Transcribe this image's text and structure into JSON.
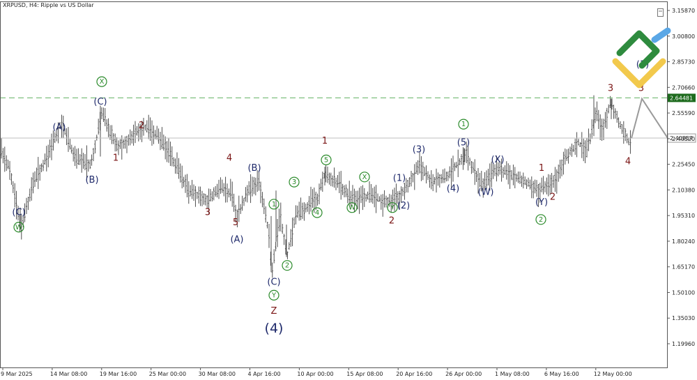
{
  "chart_title": "XRPUSD, H4:  Ripple vs US Dollar",
  "chart_data": {
    "type": "candlestick",
    "title": "XRPUSD, H4:  Ripple vs US Dollar",
    "ylim": [
      1.12,
      3.23
    ],
    "y_ticks": [
      "3.15870",
      "3.00800",
      "2.85730",
      "2.70660",
      "2.55590",
      "2.40520",
      "2.25450",
      "2.10380",
      "1.95310",
      "1.80240",
      "1.65170",
      "1.50100",
      "1.35030",
      "1.19960"
    ],
    "x_ticks": [
      "9 Mar 2025",
      "14 Mar 08:00",
      "19 Mar 16:00",
      "25 Mar 00:00",
      "30 Mar 08:00",
      "4 Apr 16:00",
      "10 Apr 00:00",
      "15 Apr 08:00",
      "20 Apr 16:00",
      "26 Apr 00:00",
      "1 May 08:00",
      "6 May 16:00",
      "12 May 00:00"
    ],
    "resistance": {
      "value": 2.64481,
      "label": "2.64481",
      "color": "#1e6b1e",
      "style": "dashed"
    },
    "current_price": {
      "value": 2.40857,
      "label": "2.40857"
    },
    "path": [
      [
        0,
        2.35
      ],
      [
        14,
        2.22
      ],
      [
        30,
        1.88
      ],
      [
        48,
        2.15
      ],
      [
        68,
        2.3
      ],
      [
        88,
        2.5
      ],
      [
        106,
        2.3
      ],
      [
        130,
        2.25
      ],
      [
        146,
        2.55
      ],
      [
        168,
        2.36
      ],
      [
        186,
        2.4
      ],
      [
        206,
        2.48
      ],
      [
        226,
        2.42
      ],
      [
        246,
        2.3
      ],
      [
        270,
        2.1
      ],
      [
        298,
        2.05
      ],
      [
        318,
        2.12
      ],
      [
        332,
        2.08
      ],
      [
        340,
        1.95
      ],
      [
        356,
        2.1
      ],
      [
        372,
        2.15
      ],
      [
        386,
        1.85
      ],
      [
        390,
        1.62
      ],
      [
        402,
        1.95
      ],
      [
        412,
        1.72
      ],
      [
        424,
        1.95
      ],
      [
        440,
        2.0
      ],
      [
        456,
        2.06
      ],
      [
        466,
        2.2
      ],
      [
        486,
        2.14
      ],
      [
        506,
        2.05
      ],
      [
        530,
        2.07
      ],
      [
        560,
        2.03
      ],
      [
        576,
        2.08
      ],
      [
        602,
        2.25
      ],
      [
        620,
        2.15
      ],
      [
        646,
        2.2
      ],
      [
        668,
        2.32
      ],
      [
        692,
        2.12
      ],
      [
        712,
        2.23
      ],
      [
        742,
        2.18
      ],
      [
        772,
        2.1
      ],
      [
        796,
        2.16
      ],
      [
        812,
        2.3
      ],
      [
        830,
        2.38
      ],
      [
        842,
        2.33
      ],
      [
        856,
        2.57
      ],
      [
        864,
        2.45
      ],
      [
        876,
        2.62
      ],
      [
        890,
        2.48
      ],
      [
        906,
        2.36
      ]
    ],
    "projection": [
      [
        906,
        2.40857
      ],
      [
        921,
        2.64
      ],
      [
        958,
        2.40857
      ]
    ],
    "wave_labels": [
      {
        "text": "W",
        "style": "circle",
        "color": "#2a8a2a",
        "x": 27,
        "y": 1.885
      },
      {
        "text": "(C)",
        "style": "plain",
        "color": "#1f2a6b",
        "x": 27,
        "y": 1.97
      },
      {
        "text": "(A)",
        "style": "plain",
        "color": "#1f2a6b",
        "x": 85,
        "y": 2.47
      },
      {
        "text": "(B)",
        "style": "plain",
        "color": "#1f2a6b",
        "x": 132,
        "y": 2.16
      },
      {
        "text": "X",
        "style": "circle",
        "color": "#2a8a2a",
        "x": 146,
        "y": 2.74
      },
      {
        "text": "(C)",
        "style": "plain",
        "color": "#1f2a6b",
        "x": 144,
        "y": 2.62
      },
      {
        "text": "1",
        "style": "plain",
        "color": "#7a1414",
        "x": 166,
        "y": 2.29
      },
      {
        "text": "2",
        "style": "plain",
        "color": "#7a1414",
        "x": 203,
        "y": 2.48
      },
      {
        "text": "3",
        "style": "plain",
        "color": "#7a1414",
        "x": 298,
        "y": 1.97
      },
      {
        "text": "4",
        "style": "plain",
        "color": "#7a1414",
        "x": 329,
        "y": 2.29
      },
      {
        "text": "5",
        "style": "plain",
        "color": "#7a1414",
        "x": 338,
        "y": 1.91
      },
      {
        "text": "(A)",
        "style": "plain",
        "color": "#1f2a6b",
        "x": 340,
        "y": 1.81
      },
      {
        "text": "(B)",
        "style": "plain",
        "color": "#1f2a6b",
        "x": 365,
        "y": 2.23
      },
      {
        "text": "1",
        "style": "circle",
        "color": "#2a8a2a",
        "x": 393,
        "y": 2.02
      },
      {
        "text": "3",
        "style": "circle",
        "color": "#2a8a2a",
        "x": 422,
        "y": 2.15
      },
      {
        "text": "4",
        "style": "circle",
        "color": "#2a8a2a",
        "x": 455,
        "y": 1.97
      },
      {
        "text": "2",
        "style": "circle",
        "color": "#2a8a2a",
        "x": 412,
        "y": 1.66
      },
      {
        "text": "(C)",
        "style": "plain",
        "color": "#1f2a6b",
        "x": 393,
        "y": 1.56
      },
      {
        "text": "Y",
        "style": "circle",
        "color": "#2a8a2a",
        "x": 393,
        "y": 1.485
      },
      {
        "text": "Z",
        "style": "plain",
        "color": "#7a1414",
        "x": 393,
        "y": 1.39
      },
      {
        "text": "(4)",
        "style": "plain-large",
        "color": "#1f2a6b",
        "x": 393,
        "y": 1.29
      },
      {
        "text": "1",
        "style": "plain",
        "color": "#7a1414",
        "x": 466,
        "y": 2.39
      },
      {
        "text": "5",
        "style": "circle",
        "color": "#2a8a2a",
        "x": 468,
        "y": 2.28
      },
      {
        "text": "X",
        "style": "circle",
        "color": "#2a8a2a",
        "x": 523,
        "y": 2.18
      },
      {
        "text": "W",
        "style": "circle",
        "color": "#2a8a2a",
        "x": 505,
        "y": 2.0
      },
      {
        "text": "(1)",
        "style": "plain",
        "color": "#1f2a6b",
        "x": 573,
        "y": 2.17
      },
      {
        "text": "Y",
        "style": "circle",
        "color": "#2a8a2a",
        "x": 563,
        "y": 2.0
      },
      {
        "text": "(2)",
        "style": "plain",
        "color": "#1f2a6b",
        "x": 579,
        "y": 2.01
      },
      {
        "text": "2",
        "style": "plain",
        "color": "#7a1414",
        "x": 562,
        "y": 1.92
      },
      {
        "text": "(3)",
        "style": "plain",
        "color": "#1f2a6b",
        "x": 601,
        "y": 2.34
      },
      {
        "text": "(4)",
        "style": "plain",
        "color": "#1f2a6b",
        "x": 650,
        "y": 2.11
      },
      {
        "text": "1",
        "style": "circle",
        "color": "#2a8a2a",
        "x": 665,
        "y": 2.49
      },
      {
        "text": "(5)",
        "style": "plain",
        "color": "#1f2a6b",
        "x": 665,
        "y": 2.38
      },
      {
        "text": "(X)",
        "style": "plain",
        "color": "#1f2a6b",
        "x": 714,
        "y": 2.28
      },
      {
        "text": "(W)",
        "style": "plain",
        "color": "#1f2a6b",
        "x": 697,
        "y": 2.09
      },
      {
        "text": "1",
        "style": "plain",
        "color": "#7a1414",
        "x": 777,
        "y": 2.23
      },
      {
        "text": "(Y)",
        "style": "plain",
        "color": "#1f2a6b",
        "x": 777,
        "y": 2.03
      },
      {
        "text": "2",
        "style": "plain",
        "color": "#7a1414",
        "x": 793,
        "y": 2.06
      },
      {
        "text": "2",
        "style": "circle",
        "color": "#2a8a2a",
        "x": 776,
        "y": 1.93
      },
      {
        "text": "3",
        "style": "plain",
        "color": "#7a1414",
        "x": 876,
        "y": 2.7
      },
      {
        "text": "4",
        "style": "plain",
        "color": "#7a1414",
        "x": 901,
        "y": 2.27
      },
      {
        "text": "3",
        "style": "plain",
        "color": "#7a1414",
        "x": 920,
        "y": 2.7
      },
      {
        "text": "(1)",
        "style": "plain",
        "color": "#1f2a6b",
        "x": 922,
        "y": 2.84
      }
    ]
  },
  "logo": {
    "colors": [
      "#2e8b3e",
      "#f2c94c",
      "#5aa7e6"
    ]
  },
  "icons": {
    "scroll": "scroll-box-icon"
  }
}
